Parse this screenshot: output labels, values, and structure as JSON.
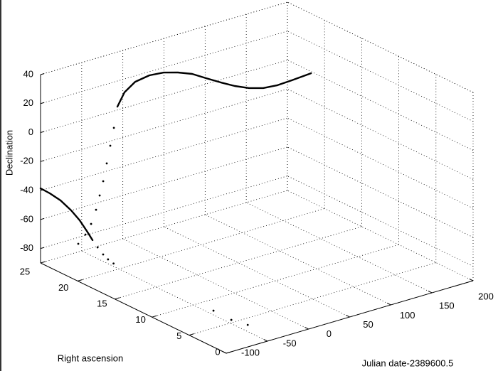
{
  "chart_data": {
    "type": "plot3",
    "xlabel": "Julian date-2389600.5",
    "ylabel": "Right ascension",
    "zlabel": "Declination",
    "xlim": [
      -100,
      200
    ],
    "ylim": [
      0,
      25
    ],
    "zlim": [
      -90,
      40
    ],
    "xticks": [
      -100,
      -50,
      0,
      50,
      100,
      150,
      200
    ],
    "yticks": [
      0,
      5,
      10,
      15,
      20,
      25
    ],
    "zticks": [
      -80,
      -60,
      -40,
      -20,
      0,
      20,
      40
    ],
    "grid": true,
    "series": [
      {
        "style": "line",
        "color": "#000000",
        "x": [
          -100,
          -91.0,
          -78.0,
          -65.1,
          -54.7,
          -46.1,
          -39.1
        ],
        "y": [
          25,
          24.75,
          24.75,
          24.75,
          24.75,
          24.75,
          24.75
        ],
        "z": [
          -38.5,
          -42.8,
          -49.9,
          -58.9,
          -67.5,
          -76.3,
          -83.8
        ]
      },
      {
        "style": "dots",
        "color": "#000000",
        "x": [
          -37.0,
          -43.8,
          -47.8,
          -50.1
        ],
        "y": [
          24.3,
          22.8,
          21.7,
          20.7
        ],
        "z": [
          -88,
          -88,
          -88,
          -88
        ]
      },
      {
        "style": "dots",
        "color": "#000000",
        "x": [
          -63.2,
          -54.5,
          -47.6,
          -41.6,
          -37.2,
          -32.9,
          -28.6,
          -24.3,
          -19.9
        ],
        "y": [
          24,
          24,
          24,
          24,
          24,
          24,
          24,
          24,
          24
        ],
        "z": [
          -80.4,
          -75.5,
          -69.3,
          -60.5,
          -51.4,
          -42.3,
          -30.7,
          -19.2,
          -7.6
        ]
      },
      {
        "style": "line",
        "color": "#000000",
        "x": [
          -17.9,
          -15.7,
          -9.2,
          1.7,
          12.5,
          23.4,
          34.2,
          45.0,
          55.9,
          66.7,
          77.6,
          88.4,
          99.3,
          110.1,
          127.1
        ],
        "y": [
          23.75,
          23.04,
          22.32,
          21.61,
          20.89,
          20.18,
          19.46,
          18.75,
          18.04,
          17.32,
          16.61,
          15.89,
          15.18,
          14.46,
          13.75
        ],
        "z": [
          7.3,
          18.6,
          26.6,
          31.0,
          32.9,
          32.9,
          31.9,
          28.9,
          26.0,
          23.5,
          22.0,
          22.0,
          23.9,
          27.3,
          31.1
        ]
      },
      {
        "style": "dots",
        "color": "#000000",
        "x": [
          -47.8,
          -48.7,
          -44.1
        ],
        "y": [
          7.5,
          5.0,
          3.3
        ],
        "z": [
          -88,
          -88,
          -88
        ]
      }
    ]
  }
}
